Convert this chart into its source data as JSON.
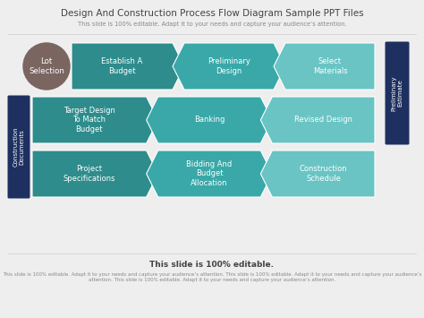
{
  "title": "Design And Construction Process Flow Diagram Sample PPT Files",
  "subtitle": "This slide is 100% editable. Adapt it to your needs and capture your audience’s attention.",
  "footer_bold": "This slide is 100% editable.",
  "footer_small": "This slide is 100% editable. Adapt it to your needs and capture your audience’s attention. This slide is 100% editable. Adapt it to your needs and capture your audience’s attention. This slide is 100% editable. Adapt it to your needs and capture your audience’s attention.",
  "bg_color": "#eeeeee",
  "title_color": "#444444",
  "subtitle_color": "#888888",
  "circle_color": "#7a6560",
  "left_banner_color": "#1e3060",
  "right_banner_color": "#1e3060",
  "left_banner_text": "Construction\nDocuments",
  "right_banner_text": "Preliminary\nEstimate",
  "row0_labels": [
    "Establish A\nBudget",
    "Preliminary\nDesign",
    "Select\nMaterials"
  ],
  "row1_labels": [
    "Target Design\nTo Match\nBudget",
    "Banking",
    "Revised Design"
  ],
  "row2_labels": [
    "Project\nSpecifications",
    "Bidding And\nBudget\nAllocation",
    "Construction\nSchedule"
  ],
  "colors_dark": "#2e8c8c",
  "colors_mid": "#3aa8a8",
  "colors_light": "#6ac4c4",
  "lot_text": "Lot\nSelection"
}
